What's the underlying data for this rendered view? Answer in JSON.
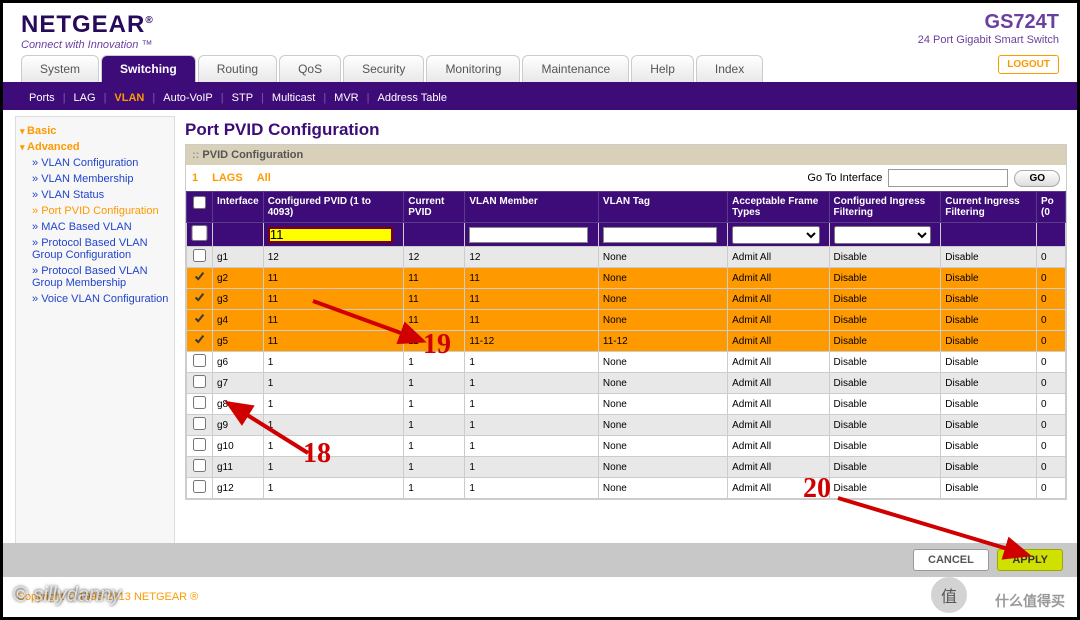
{
  "brand": {
    "name": "NETGEAR",
    "tagline": "Connect with Innovation ™"
  },
  "product": {
    "model": "GS724T",
    "desc": "24 Port Gigabit Smart Switch"
  },
  "logout": "LOGOUT",
  "tabs": [
    "System",
    "Switching",
    "Routing",
    "QoS",
    "Security",
    "Monitoring",
    "Maintenance",
    "Help",
    "Index"
  ],
  "activeTab": 1,
  "subnav": [
    "Ports",
    "LAG",
    "VLAN",
    "Auto-VoIP",
    "STP",
    "Multicast",
    "MVR",
    "Address Table"
  ],
  "subnavActive": 2,
  "side": {
    "l1a": "Basic",
    "l1b": "Advanced",
    "items": [
      "VLAN Configuration",
      "VLAN Membership",
      "VLAN Status",
      "Port PVID Configuration",
      "MAC Based VLAN",
      "Protocol Based VLAN Group Configuration",
      "Protocol Based VLAN Group Membership",
      "Voice VLAN Configuration"
    ],
    "active": 3
  },
  "page": {
    "title": "Port PVID Configuration",
    "section": "PVID Configuration"
  },
  "filterbar": {
    "one": "1",
    "lags": "LAGS",
    "all": "All",
    "goto": "Go To Interface",
    "go": "GO"
  },
  "cols": [
    "Interface",
    "Configured PVID (1 to 4093)",
    "Current PVID",
    "VLAN Member",
    "VLAN Tag",
    "Acceptable Frame Types",
    "Configured Ingress Filtering",
    "Current Ingress Filtering",
    "Po (0"
  ],
  "filterPVID": "11",
  "rows": [
    {
      "sel": false,
      "if": "g1",
      "cp": "12",
      "cur": "12",
      "vm": "12",
      "vt": "None",
      "aft": "Admit All",
      "cif": "Disable",
      "curif": "Disable",
      "po": "0"
    },
    {
      "sel": true,
      "if": "g2",
      "cp": "11",
      "cur": "11",
      "vm": "11",
      "vt": "None",
      "aft": "Admit All",
      "cif": "Disable",
      "curif": "Disable",
      "po": "0"
    },
    {
      "sel": true,
      "if": "g3",
      "cp": "11",
      "cur": "11",
      "vm": "11",
      "vt": "None",
      "aft": "Admit All",
      "cif": "Disable",
      "curif": "Disable",
      "po": "0"
    },
    {
      "sel": true,
      "if": "g4",
      "cp": "11",
      "cur": "11",
      "vm": "11",
      "vt": "None",
      "aft": "Admit All",
      "cif": "Disable",
      "curif": "Disable",
      "po": "0"
    },
    {
      "sel": true,
      "if": "g5",
      "cp": "11",
      "cur": "11",
      "vm": "11-12",
      "vt": "11-12",
      "aft": "Admit All",
      "cif": "Disable",
      "curif": "Disable",
      "po": "0"
    },
    {
      "sel": false,
      "if": "g6",
      "cp": "1",
      "cur": "1",
      "vm": "1",
      "vt": "None",
      "aft": "Admit All",
      "cif": "Disable",
      "curif": "Disable",
      "po": "0"
    },
    {
      "sel": false,
      "if": "g7",
      "cp": "1",
      "cur": "1",
      "vm": "1",
      "vt": "None",
      "aft": "Admit All",
      "cif": "Disable",
      "curif": "Disable",
      "po": "0"
    },
    {
      "sel": false,
      "if": "g8",
      "cp": "1",
      "cur": "1",
      "vm": "1",
      "vt": "None",
      "aft": "Admit All",
      "cif": "Disable",
      "curif": "Disable",
      "po": "0"
    },
    {
      "sel": false,
      "if": "g9",
      "cp": "1",
      "cur": "1",
      "vm": "1",
      "vt": "None",
      "aft": "Admit All",
      "cif": "Disable",
      "curif": "Disable",
      "po": "0"
    },
    {
      "sel": false,
      "if": "g10",
      "cp": "1",
      "cur": "1",
      "vm": "1",
      "vt": "None",
      "aft": "Admit All",
      "cif": "Disable",
      "curif": "Disable",
      "po": "0"
    },
    {
      "sel": false,
      "if": "g11",
      "cp": "1",
      "cur": "1",
      "vm": "1",
      "vt": "None",
      "aft": "Admit All",
      "cif": "Disable",
      "curif": "Disable",
      "po": "0"
    },
    {
      "sel": false,
      "if": "g12",
      "cp": "1",
      "cur": "1",
      "vm": "1",
      "vt": "None",
      "aft": "Admit All",
      "cif": "Disable",
      "curif": "Disable",
      "po": "0"
    }
  ],
  "buttons": {
    "cancel": "CANCEL",
    "apply": "APPLY"
  },
  "footer": "Copyright © 1996-2013 NETGEAR ®",
  "watermark": "© sillydanny",
  "watermark2": "什么值得买",
  "circ": "值",
  "ann": {
    "a18": "18",
    "a19": "19",
    "a20": "20"
  },
  "colors": {
    "purple": "#3e0c78",
    "orange": "#f90",
    "hl": "#ffff00",
    "red": "#d00000"
  }
}
